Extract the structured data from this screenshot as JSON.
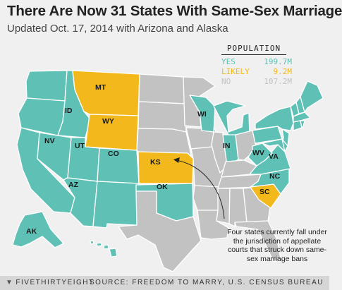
{
  "title": "There Are Now 31 States With Same-Sex Marriage",
  "subtitle": "Updated Oct. 17, 2014 with Arizona and Alaska",
  "colors": {
    "yes": "#5fc0b6",
    "likely": "#f3b81b",
    "no": "#c2c2c2",
    "border": "#ffffff"
  },
  "legend": {
    "header": "POPULATION",
    "rows": [
      {
        "key": "YES",
        "value": "199.7M",
        "color": "#5fc0b6"
      },
      {
        "key": "LIKELY",
        "value": "9.2M",
        "color": "#f3b81b"
      },
      {
        "key": "NO",
        "value": "107.2M",
        "color": "#c2c2c2"
      }
    ]
  },
  "state_labels": {
    "mt": "MT",
    "id": "ID",
    "wy": "WY",
    "nv": "NV",
    "ut": "UT",
    "co": "CO",
    "az": "AZ",
    "ks": "KS",
    "ok": "OK",
    "wi": "WI",
    "in": "IN",
    "wv": "WV",
    "va": "VA",
    "nc": "NC",
    "sc": "SC",
    "ak": "AK"
  },
  "annotation": "Four states currently fall under the jurisdiction of appellate courts that struck down same-sex marriage bans",
  "footer": {
    "brand_icon": "fivethirtyeight-logo-icon",
    "brand": "FIVETHIRTYEIGHT",
    "source": "SOURCE: FREEDOM TO MARRY, U.S. CENSUS BUREAU"
  }
}
